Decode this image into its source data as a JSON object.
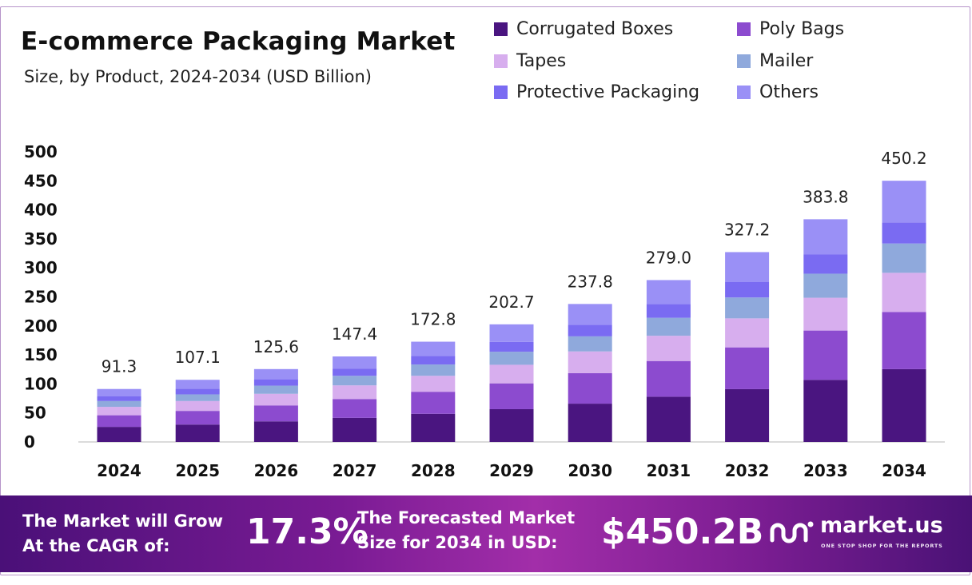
{
  "title": "E-commerce Packaging Market",
  "subtitle": "Size, by Product, 2024-2034 (USD Billion)",
  "legend": [
    {
      "label": "Corrugated Boxes",
      "color": "#4a1580"
    },
    {
      "label": "Poly Bags",
      "color": "#8c4bcf"
    },
    {
      "label": "Tapes",
      "color": "#d7aeee"
    },
    {
      "label": "Mailer",
      "color": "#8fa9dc"
    },
    {
      "label": "Protective Packaging",
      "color": "#7a6bf2"
    },
    {
      "label": "Others",
      "color": "#9a90f6"
    }
  ],
  "chart_data": {
    "type": "bar",
    "stacked": true,
    "title": "E-commerce Packaging Market",
    "subtitle": "Size, by Product, 2024-2034 (USD Billion)",
    "categories": [
      "2024",
      "2025",
      "2026",
      "2027",
      "2028",
      "2029",
      "2030",
      "2031",
      "2032",
      "2033",
      "2034"
    ],
    "series": [
      {
        "name": "Corrugated Boxes",
        "color": "#4a1580",
        "values": [
          26.0,
          30.0,
          35.5,
          41.5,
          48.5,
          56.5,
          66.0,
          78.0,
          91.0,
          107.0,
          125.5
        ]
      },
      {
        "name": "Poly Bags",
        "color": "#8c4bcf",
        "values": [
          20.0,
          23.5,
          27.5,
          32.5,
          38.0,
          44.5,
          52.5,
          61.5,
          72.0,
          85.0,
          98.5
        ]
      },
      {
        "name": "Tapes",
        "color": "#d7aeee",
        "values": [
          14.5,
          17.0,
          20.0,
          23.5,
          27.5,
          32.0,
          37.5,
          43.5,
          50.0,
          56.5,
          67.5
        ]
      },
      {
        "name": "Mailer",
        "color": "#8fa9dc",
        "values": [
          10.0,
          11.5,
          14.0,
          16.5,
          19.5,
          22.5,
          26.0,
          31.0,
          36.0,
          41.5,
          50.5
        ]
      },
      {
        "name": "Protective Packaging",
        "color": "#7a6bf2",
        "values": [
          8.0,
          9.5,
          11.0,
          12.5,
          14.5,
          17.0,
          20.0,
          23.5,
          27.0,
          33.0,
          36.0
        ]
      },
      {
        "name": "Others",
        "color": "#9a90f6",
        "values": [
          12.8,
          15.6,
          17.6,
          20.9,
          24.8,
          30.2,
          35.8,
          41.5,
          51.2,
          60.8,
          72.2
        ]
      }
    ],
    "totals": [
      "91.3",
      "107.1",
      "125.6",
      "147.4",
      "172.8",
      "202.7",
      "237.8",
      "279.0",
      "327.2",
      "383.8",
      "450.2"
    ],
    "yticks": [
      "0",
      "50",
      "100",
      "150",
      "200",
      "250",
      "300",
      "350",
      "400",
      "450",
      "500"
    ],
    "ylim": [
      0,
      500
    ],
    "xlabel": "",
    "ylabel": "",
    "grid": false,
    "legend_position": "top-right"
  },
  "banner": {
    "cagr_label_line1": "The Market will Grow",
    "cagr_label_line2": "At the CAGR of:",
    "cagr_value": "17.3%",
    "forecast_label_line1": "The Forecasted Market",
    "forecast_label_line2": "Size for 2034 in USD:",
    "forecast_value": "$450.2B",
    "brand_name": "market.us",
    "brand_tagline": "ONE STOP SHOP FOR THE REPORTS",
    "brand_icon": "market-us-logo-icon"
  }
}
